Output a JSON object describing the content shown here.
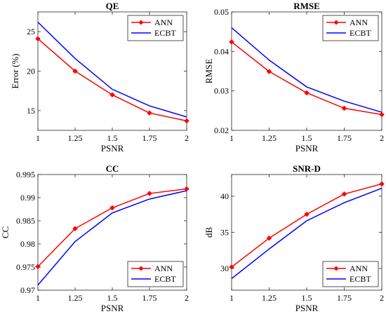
{
  "colors": {
    "ANN": "#ff0000",
    "ECBT": "#0000ff"
  },
  "chart_data": [
    {
      "type": "line",
      "title": "QE",
      "xlabel": "PSNR",
      "ylabel": "Error (%)",
      "x": [
        1,
        1.25,
        1.5,
        1.75,
        2
      ],
      "xticks": [
        "1",
        "1.25",
        "1.5",
        "1.75",
        "2"
      ],
      "ylim": [
        12.5,
        27.5
      ],
      "yticks": [
        15,
        20,
        25
      ],
      "yticklabels": [
        "15",
        "20",
        "25"
      ],
      "legend": "top-right",
      "series": [
        {
          "name": "ANN",
          "values": [
            24.1,
            20.0,
            17.0,
            14.7,
            13.7
          ]
        },
        {
          "name": "ECBT",
          "values": [
            26.2,
            21.6,
            17.7,
            15.6,
            14.2
          ]
        }
      ]
    },
    {
      "type": "line",
      "title": "RMSE",
      "xlabel": "PSNR",
      "ylabel": "RMSE",
      "x": [
        1,
        1.25,
        1.5,
        1.75,
        2
      ],
      "xticks": [
        "1",
        "1.25",
        "1.5",
        "1.75",
        "2"
      ],
      "ylim": [
        0.02,
        0.05
      ],
      "yticks": [
        0.02,
        0.03,
        0.04,
        0.05
      ],
      "yticklabels": [
        "0.02",
        "0.03",
        "0.04",
        "0.05"
      ],
      "legend": "top-right",
      "series": [
        {
          "name": "ANN",
          "values": [
            0.0424,
            0.0349,
            0.0295,
            0.0256,
            0.024
          ]
        },
        {
          "name": "ECBT",
          "values": [
            0.046,
            0.0378,
            0.031,
            0.0274,
            0.0246
          ]
        }
      ]
    },
    {
      "type": "line",
      "title": "CC",
      "xlabel": "PSNR",
      "ylabel": "CC",
      "x": [
        1,
        1.25,
        1.5,
        1.75,
        2
      ],
      "xticks": [
        "1",
        "1.25",
        "1.5",
        "1.75",
        "2"
      ],
      "ylim": [
        0.97,
        0.995
      ],
      "yticks": [
        0.97,
        0.975,
        0.98,
        0.985,
        0.99,
        0.995
      ],
      "yticklabels": [
        "0.97",
        "0.975",
        "0.98",
        "0.985",
        "0.99",
        "0.995"
      ],
      "legend": "bottom-right",
      "series": [
        {
          "name": "ANN",
          "values": [
            0.9751,
            0.9833,
            0.9878,
            0.9909,
            0.9919
          ]
        },
        {
          "name": "ECBT",
          "values": [
            0.9711,
            0.9805,
            0.9867,
            0.9897,
            0.9915
          ]
        }
      ]
    },
    {
      "type": "line",
      "title": "SNR-D",
      "xlabel": "PSNR",
      "ylabel": "dB",
      "x": [
        1,
        1.25,
        1.5,
        1.75,
        2
      ],
      "xticks": [
        "1",
        "1.25",
        "1.5",
        "1.75",
        "2"
      ],
      "ylim": [
        27,
        43
      ],
      "yticks": [
        30,
        35,
        40
      ],
      "yticklabels": [
        "30",
        "35",
        "40"
      ],
      "legend": "bottom-right",
      "series": [
        {
          "name": "ANN",
          "values": [
            30.2,
            34.2,
            37.5,
            40.3,
            41.7
          ]
        },
        {
          "name": "ECBT",
          "values": [
            28.6,
            32.7,
            36.6,
            39.1,
            41.1
          ]
        }
      ]
    }
  ]
}
